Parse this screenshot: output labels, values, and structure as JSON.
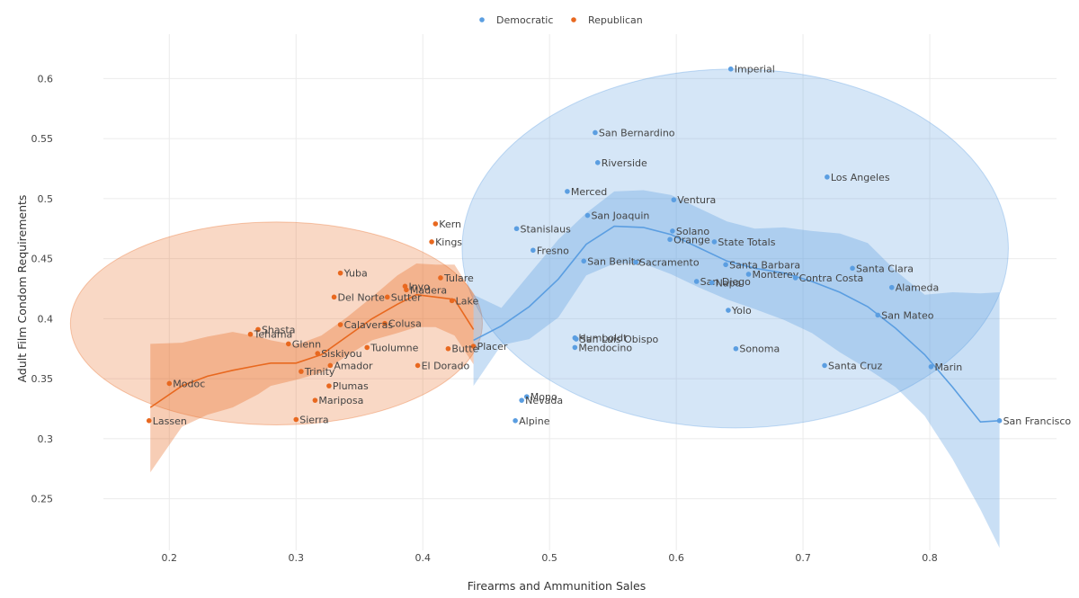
{
  "chart_data": {
    "type": "scatter",
    "xlabel": "Firearms and Ammunition Sales",
    "ylabel": "Adult Film Condom Requirements",
    "xlim": [
      0.148,
      0.9
    ],
    "ylim": [
      0.207,
      0.637
    ],
    "x_ticks": [
      0.2,
      0.3,
      0.4,
      0.5,
      0.6,
      0.7,
      0.8
    ],
    "y_ticks": [
      0.25,
      0.3,
      0.35,
      0.4,
      0.45,
      0.5,
      0.55,
      0.6
    ],
    "x_tick_labels": [
      "0.2",
      "0.3",
      "0.4",
      "0.5",
      "0.6",
      "0.7",
      "0.8"
    ],
    "y_tick_labels": [
      "0.25",
      "0.3",
      "0.35",
      "0.4",
      "0.45",
      "0.5",
      "0.55",
      "0.6"
    ],
    "grid": true,
    "legend_position": "top-center",
    "series": [
      {
        "name": "Democratic",
        "color": "#5b9ee1",
        "ellipse": {
          "cx": 0.6465,
          "cy": 0.4585,
          "rx": 0.2155,
          "ry": 0.1495
        },
        "smooth": {
          "x": [
            0.44,
            0.462,
            0.484,
            0.507,
            0.529,
            0.551,
            0.574,
            0.596,
            0.618,
            0.64,
            0.662,
            0.685,
            0.707,
            0.729,
            0.751,
            0.773,
            0.796,
            0.818,
            0.84,
            0.855
          ],
          "y": [
            0.382,
            0.394,
            0.41,
            0.433,
            0.462,
            0.477,
            0.476,
            0.47,
            0.459,
            0.448,
            0.442,
            0.438,
            0.431,
            0.422,
            0.41,
            0.392,
            0.37,
            0.343,
            0.314,
            0.315
          ],
          "lower": [
            0.344,
            0.378,
            0.383,
            0.401,
            0.436,
            0.446,
            0.446,
            0.437,
            0.426,
            0.416,
            0.408,
            0.399,
            0.388,
            0.372,
            0.358,
            0.343,
            0.319,
            0.283,
            0.241,
            0.209
          ],
          "upper": [
            0.42,
            0.409,
            0.437,
            0.466,
            0.488,
            0.506,
            0.507,
            0.503,
            0.492,
            0.481,
            0.475,
            0.476,
            0.473,
            0.471,
            0.463,
            0.44,
            0.42,
            0.422,
            0.421,
            0.422
          ]
        },
        "points": [
          {
            "label": "Imperial",
            "x": 0.643,
            "y": 0.608
          },
          {
            "label": "San Bernardino",
            "x": 0.536,
            "y": 0.555
          },
          {
            "label": "Riverside",
            "x": 0.538,
            "y": 0.53
          },
          {
            "label": "Los Angeles",
            "x": 0.719,
            "y": 0.518
          },
          {
            "label": "Merced",
            "x": 0.514,
            "y": 0.506
          },
          {
            "label": "Ventura",
            "x": 0.598,
            "y": 0.499
          },
          {
            "label": "San Joaquin",
            "x": 0.53,
            "y": 0.486
          },
          {
            "label": "Stanislaus",
            "x": 0.474,
            "y": 0.475
          },
          {
            "label": "Solano",
            "x": 0.597,
            "y": 0.473
          },
          {
            "label": "Orange",
            "x": 0.595,
            "y": 0.466
          },
          {
            "label": "State Totals",
            "x": 0.63,
            "y": 0.464
          },
          {
            "label": "Fresno",
            "x": 0.487,
            "y": 0.457
          },
          {
            "label": "San Benito",
            "x": 0.527,
            "y": 0.448
          },
          {
            "label": "Sacramento",
            "x": 0.568,
            "y": 0.447
          },
          {
            "label": "Santa Barbara",
            "x": 0.639,
            "y": 0.445
          },
          {
            "label": "Santa Clara",
            "x": 0.739,
            "y": 0.442
          },
          {
            "label": "Monterey",
            "x": 0.657,
            "y": 0.437
          },
          {
            "label": "Contra Costa",
            "x": 0.694,
            "y": 0.434
          },
          {
            "label": "San Diego",
            "x": 0.616,
            "y": 0.431
          },
          {
            "label": "Napa",
            "x": 0.628,
            "y": 0.43
          },
          {
            "label": "Alameda",
            "x": 0.77,
            "y": 0.426
          },
          {
            "label": "Yolo",
            "x": 0.641,
            "y": 0.407
          },
          {
            "label": "San Mateo",
            "x": 0.759,
            "y": 0.403
          },
          {
            "label": "Humboldt",
            "x": 0.52,
            "y": 0.384
          },
          {
            "label": "San Luis Obispo",
            "x": 0.521,
            "y": 0.383
          },
          {
            "label": "Mendocino",
            "x": 0.52,
            "y": 0.376
          },
          {
            "label": "Sonoma",
            "x": 0.647,
            "y": 0.375
          },
          {
            "label": "Santa Cruz",
            "x": 0.717,
            "y": 0.361
          },
          {
            "label": "Marin",
            "x": 0.801,
            "y": 0.36
          },
          {
            "label": "Mono",
            "x": 0.482,
            "y": 0.335
          },
          {
            "label": "Nevada",
            "x": 0.478,
            "y": 0.332
          },
          {
            "label": "Alpine",
            "x": 0.473,
            "y": 0.315
          },
          {
            "label": "San Francisco",
            "x": 0.855,
            "y": 0.315
          }
        ]
      },
      {
        "name": "Republican",
        "color": "#e8681f",
        "ellipse": {
          "cx": 0.2845,
          "cy": 0.396,
          "rx": 0.1625,
          "ry": 0.0845
        },
        "smooth": {
          "x": [
            0.185,
            0.21,
            0.23,
            0.25,
            0.27,
            0.28,
            0.3,
            0.32,
            0.34,
            0.36,
            0.38,
            0.395,
            0.41,
            0.425,
            0.44
          ],
          "y": [
            0.326,
            0.344,
            0.352,
            0.357,
            0.361,
            0.363,
            0.363,
            0.37,
            0.385,
            0.4,
            0.412,
            0.42,
            0.418,
            0.416,
            0.391
          ],
          "lower": [
            0.272,
            0.31,
            0.32,
            0.326,
            0.337,
            0.344,
            0.349,
            0.355,
            0.369,
            0.382,
            0.388,
            0.393,
            0.393,
            0.386,
            0.362
          ],
          "upper": [
            0.379,
            0.38,
            0.385,
            0.389,
            0.385,
            0.382,
            0.378,
            0.386,
            0.401,
            0.418,
            0.436,
            0.446,
            0.445,
            0.445,
            0.42
          ]
        },
        "points": [
          {
            "label": "Kern",
            "x": 0.41,
            "y": 0.479
          },
          {
            "label": "Kings",
            "x": 0.407,
            "y": 0.464
          },
          {
            "label": "Yuba",
            "x": 0.335,
            "y": 0.438
          },
          {
            "label": "Tulare",
            "x": 0.414,
            "y": 0.434
          },
          {
            "label": "Inyo",
            "x": 0.386,
            "y": 0.427
          },
          {
            "label": "Madera",
            "x": 0.387,
            "y": 0.424
          },
          {
            "label": "Del Norte",
            "x": 0.33,
            "y": 0.418
          },
          {
            "label": "Sutter",
            "x": 0.372,
            "y": 0.418
          },
          {
            "label": "Lake",
            "x": 0.423,
            "y": 0.415
          },
          {
            "label": "Colusa",
            "x": 0.37,
            "y": 0.396
          },
          {
            "label": "Calaveras",
            "x": 0.335,
            "y": 0.395
          },
          {
            "label": "Shasta",
            "x": 0.27,
            "y": 0.391
          },
          {
            "label": "Tehama",
            "x": 0.264,
            "y": 0.387
          },
          {
            "label": "Glenn",
            "x": 0.294,
            "y": 0.379
          },
          {
            "label": "Placer",
            "x": 0.44,
            "y": 0.377
          },
          {
            "label": "Tuolumne",
            "x": 0.356,
            "y": 0.376
          },
          {
            "label": "Butte",
            "x": 0.42,
            "y": 0.375
          },
          {
            "label": "Siskiyou",
            "x": 0.317,
            "y": 0.371
          },
          {
            "label": "Amador",
            "x": 0.327,
            "y": 0.361
          },
          {
            "label": "El Dorado",
            "x": 0.396,
            "y": 0.361
          },
          {
            "label": "Trinity",
            "x": 0.304,
            "y": 0.356
          },
          {
            "label": "Modoc",
            "x": 0.2,
            "y": 0.346
          },
          {
            "label": "Plumas",
            "x": 0.326,
            "y": 0.344
          },
          {
            "label": "Mariposa",
            "x": 0.315,
            "y": 0.332
          },
          {
            "label": "Sierra",
            "x": 0.3,
            "y": 0.316
          },
          {
            "label": "Lassen",
            "x": 0.184,
            "y": 0.315
          }
        ]
      }
    ]
  }
}
